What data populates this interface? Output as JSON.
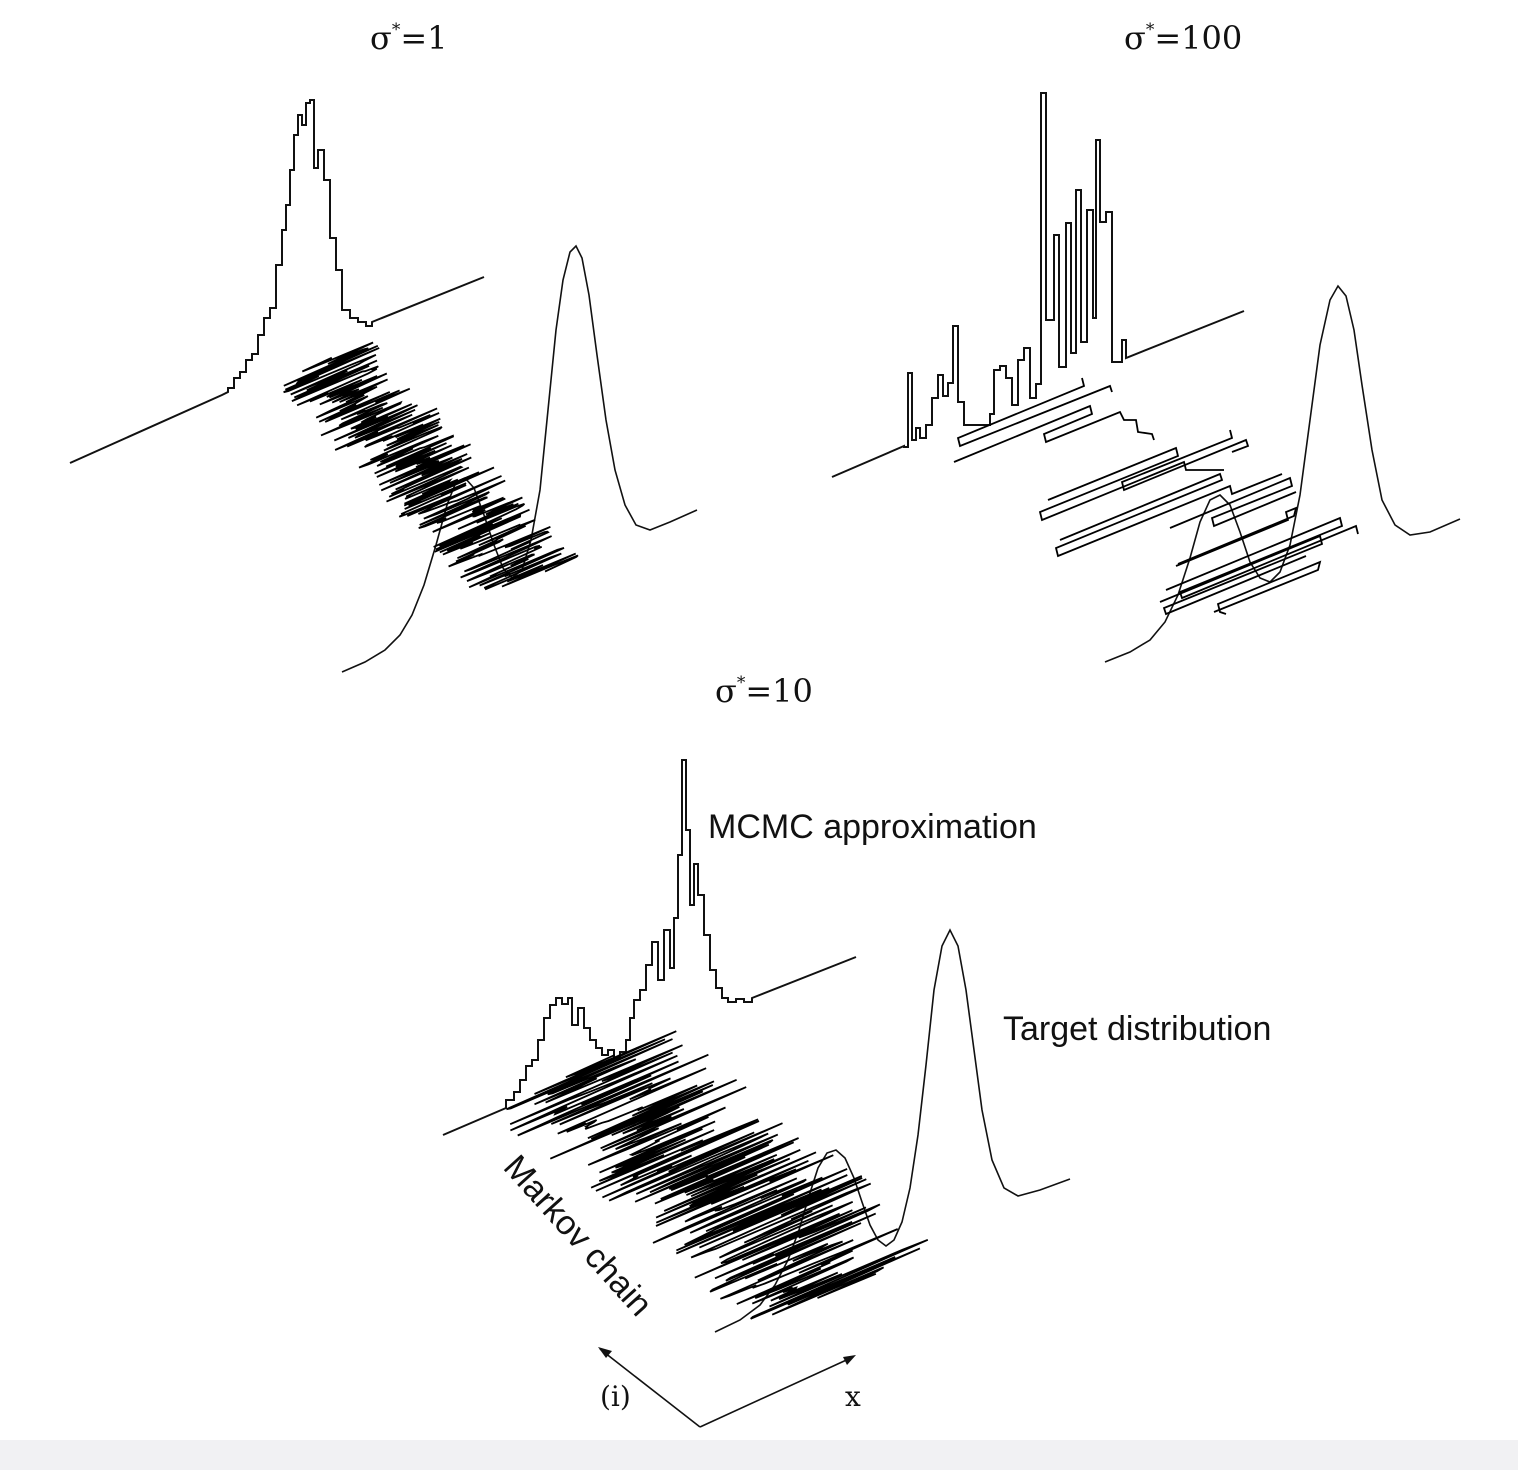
{
  "panels": [
    {
      "id": "s1",
      "title_sym": "σ",
      "title_sup": "*",
      "title_val": "=1"
    },
    {
      "id": "s100",
      "title_sym": "σ",
      "title_sup": "*",
      "title_val": "=100"
    },
    {
      "id": "s10",
      "title_sym": "σ",
      "title_sup": "*",
      "title_val": "=10"
    }
  ],
  "labels": {
    "mcmc": "MCMC approximation",
    "target": "Target distribution",
    "chain": "Markov chain",
    "axis_i": "(i)",
    "axis_x": "x"
  }
}
